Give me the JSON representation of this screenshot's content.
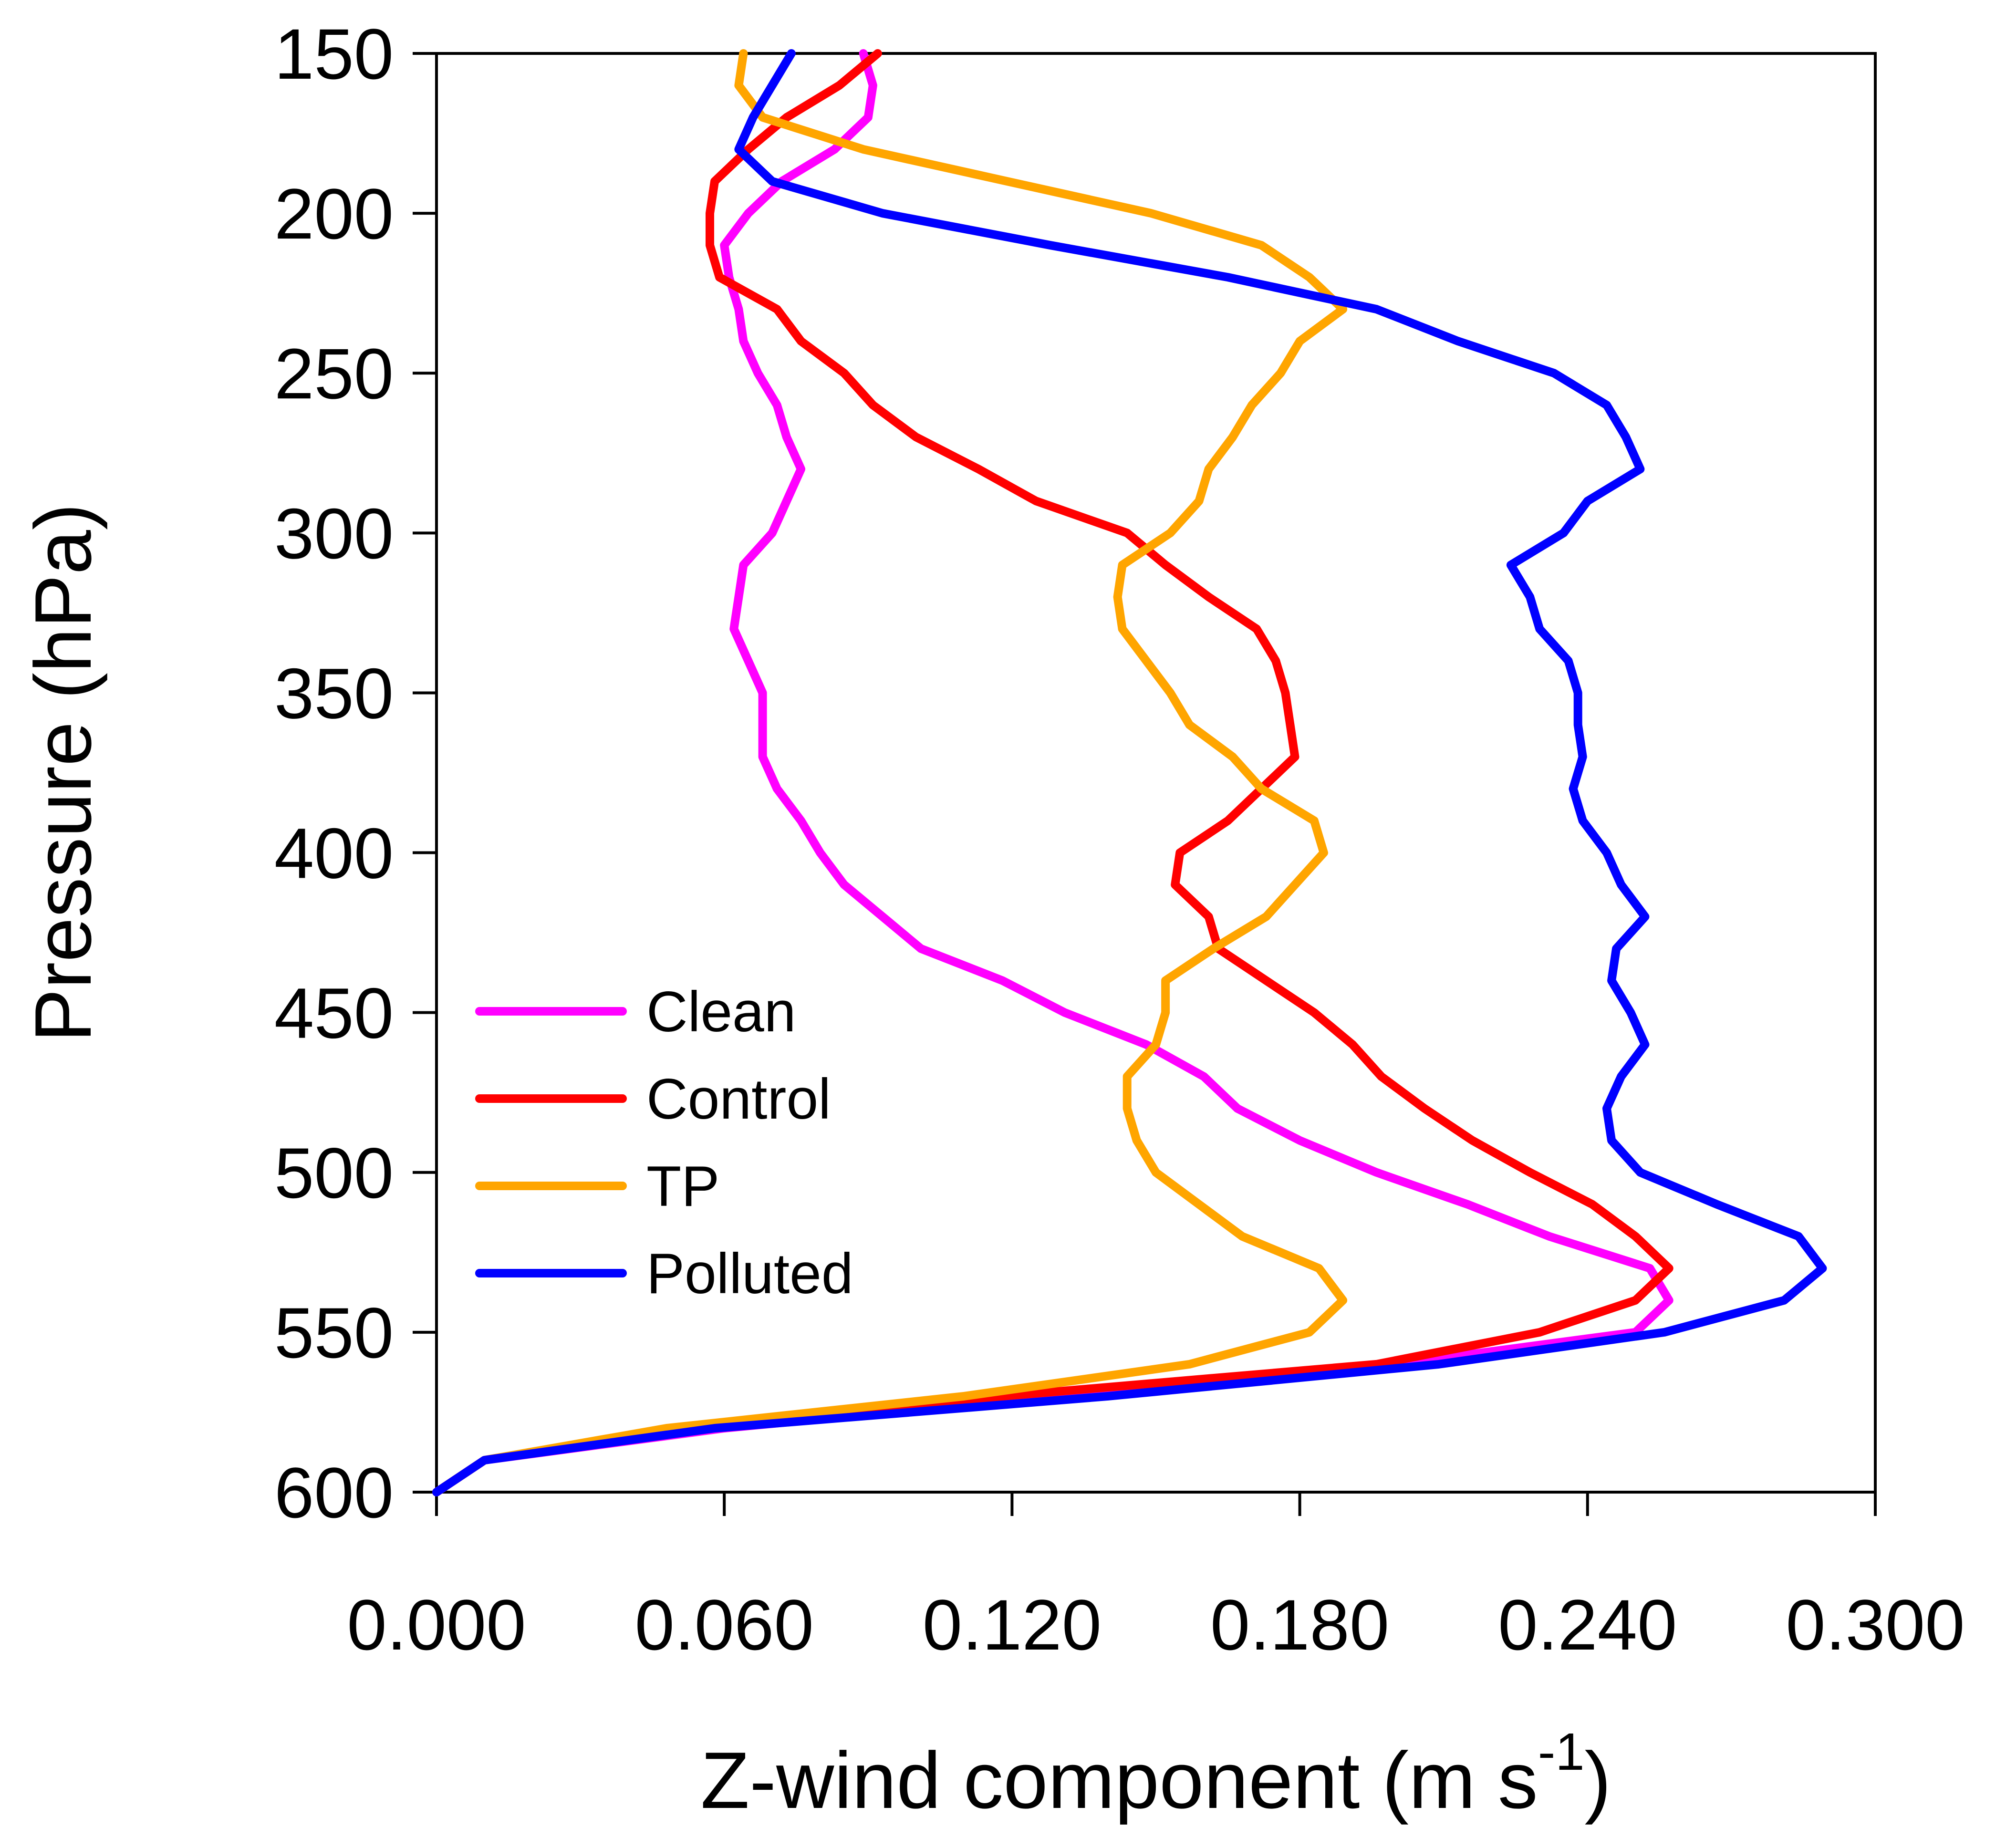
{
  "chart_data": {
    "type": "line",
    "xlabel": "Z-wind component (m s",
    "xlabel_superscript": "-1",
    "xlabel_close": ")",
    "ylabel": "Pressure (hPa)",
    "xlim": [
      0.0,
      0.3
    ],
    "ylim": [
      600,
      150
    ],
    "y_inverted": true,
    "xticks": [
      0.0,
      0.06,
      0.12,
      0.18,
      0.24,
      0.3
    ],
    "xtick_labels": [
      "0.000",
      "0.060",
      "0.120",
      "0.180",
      "0.240",
      "0.300"
    ],
    "yticks": [
      150,
      200,
      250,
      300,
      350,
      400,
      450,
      500,
      550,
      600
    ],
    "ytick_labels": [
      "150",
      "200",
      "250",
      "300",
      "350",
      "400",
      "450",
      "500",
      "550",
      "600"
    ],
    "grid": false,
    "legend_position": "lower-left",
    "series": [
      {
        "name": "Clean",
        "color": "#ff00ff",
        "pressure": [
          150,
          160,
          170,
          180,
          190,
          200,
          210,
          220,
          230,
          240,
          250,
          260,
          270,
          280,
          290,
          300,
          310,
          320,
          330,
          340,
          350,
          360,
          370,
          380,
          390,
          400,
          410,
          420,
          430,
          440,
          450,
          460,
          470,
          480,
          490,
          500,
          510,
          520,
          530,
          540,
          550,
          560,
          570,
          580,
          590,
          600
        ],
        "x": [
          0.089,
          0.091,
          0.09,
          0.083,
          0.072,
          0.065,
          0.06,
          0.061,
          0.063,
          0.064,
          0.067,
          0.071,
          0.073,
          0.076,
          0.073,
          0.07,
          0.064,
          0.063,
          0.062,
          0.065,
          0.068,
          0.068,
          0.068,
          0.071,
          0.076,
          0.08,
          0.085,
          0.093,
          0.101,
          0.118,
          0.131,
          0.148,
          0.16,
          0.167,
          0.18,
          0.196,
          0.215,
          0.232,
          0.253,
          0.257,
          0.25,
          0.2,
          0.13,
          0.06,
          0.01,
          0.0
        ]
      },
      {
        "name": "Control",
        "color": "#ff0000",
        "pressure": [
          150,
          160,
          170,
          180,
          190,
          200,
          210,
          220,
          230,
          240,
          250,
          260,
          270,
          280,
          290,
          300,
          310,
          320,
          330,
          340,
          350,
          360,
          370,
          380,
          390,
          400,
          410,
          420,
          430,
          440,
          450,
          460,
          470,
          480,
          490,
          500,
          510,
          520,
          530,
          540,
          550,
          560,
          570,
          580,
          590,
          600
        ],
        "x": [
          0.092,
          0.084,
          0.073,
          0.065,
          0.058,
          0.057,
          0.057,
          0.059,
          0.071,
          0.076,
          0.085,
          0.091,
          0.1,
          0.113,
          0.125,
          0.144,
          0.152,
          0.161,
          0.171,
          0.175,
          0.177,
          0.178,
          0.179,
          0.172,
          0.165,
          0.155,
          0.154,
          0.161,
          0.163,
          0.173,
          0.183,
          0.191,
          0.197,
          0.206,
          0.216,
          0.228,
          0.241,
          0.25,
          0.257,
          0.25,
          0.23,
          0.196,
          0.118,
          0.05,
          0.01,
          0.0
        ]
      },
      {
        "name": "TP",
        "color": "#ffa500",
        "pressure": [
          150,
          160,
          170,
          180,
          190,
          200,
          210,
          220,
          230,
          240,
          250,
          260,
          270,
          280,
          290,
          300,
          310,
          320,
          330,
          340,
          350,
          360,
          370,
          380,
          390,
          400,
          410,
          420,
          430,
          440,
          450,
          460,
          470,
          480,
          490,
          500,
          510,
          520,
          530,
          540,
          550,
          560,
          570,
          580,
          590,
          600
        ],
        "x": [
          0.064,
          0.063,
          0.068,
          0.089,
          0.119,
          0.149,
          0.172,
          0.182,
          0.189,
          0.18,
          0.176,
          0.17,
          0.166,
          0.161,
          0.159,
          0.153,
          0.143,
          0.142,
          0.143,
          0.148,
          0.153,
          0.157,
          0.166,
          0.172,
          0.183,
          0.185,
          0.179,
          0.173,
          0.162,
          0.152,
          0.152,
          0.15,
          0.144,
          0.144,
          0.146,
          0.15,
          0.159,
          0.168,
          0.184,
          0.189,
          0.182,
          0.157,
          0.11,
          0.048,
          0.01,
          0.0
        ]
      },
      {
        "name": "Polluted",
        "color": "#0000ff",
        "pressure": [
          150,
          160,
          170,
          180,
          190,
          200,
          210,
          220,
          230,
          240,
          250,
          260,
          270,
          280,
          290,
          300,
          310,
          320,
          330,
          340,
          350,
          360,
          370,
          380,
          390,
          400,
          410,
          420,
          430,
          440,
          450,
          460,
          470,
          480,
          490,
          500,
          510,
          520,
          530,
          540,
          550,
          560,
          570,
          580,
          590,
          600
        ],
        "x": [
          0.074,
          0.07,
          0.066,
          0.063,
          0.07,
          0.093,
          0.128,
          0.165,
          0.196,
          0.213,
          0.233,
          0.244,
          0.248,
          0.251,
          0.24,
          0.235,
          0.224,
          0.228,
          0.23,
          0.236,
          0.238,
          0.238,
          0.239,
          0.237,
          0.239,
          0.244,
          0.247,
          0.252,
          0.246,
          0.245,
          0.249,
          0.252,
          0.247,
          0.244,
          0.245,
          0.251,
          0.267,
          0.284,
          0.289,
          0.281,
          0.256,
          0.209,
          0.14,
          0.058,
          0.01,
          0.0
        ]
      }
    ]
  }
}
